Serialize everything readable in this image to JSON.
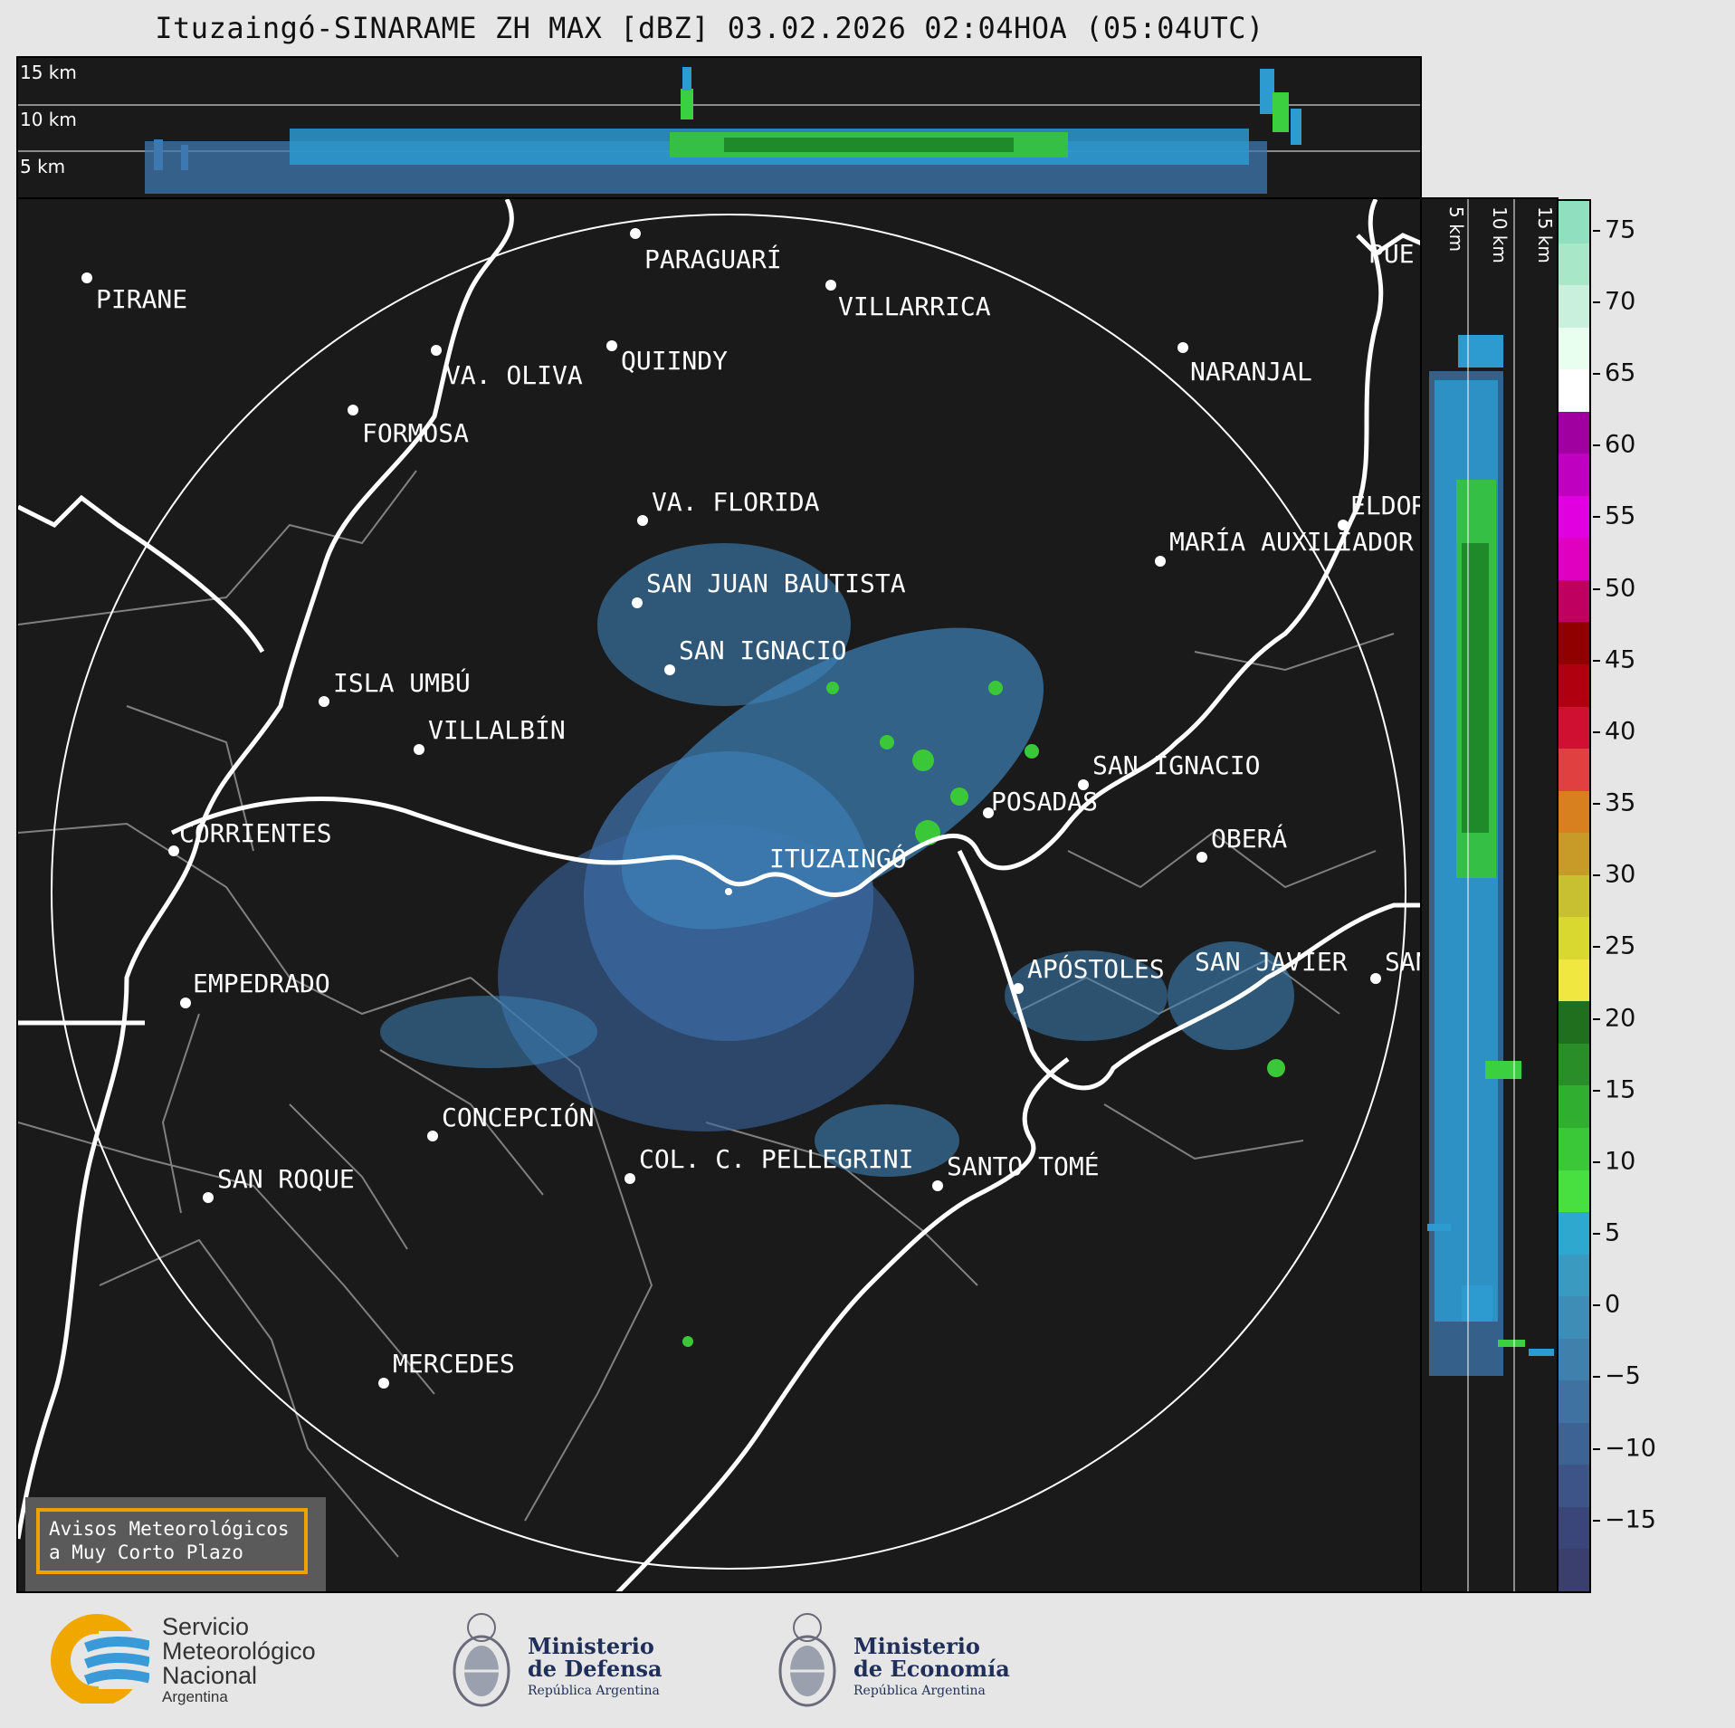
{
  "title": "Ituzaingó-SINARAME ZH MAX [dBZ] 03.02.2026 02:04HOA (05:04UTC)",
  "top_panel": {
    "height_labels": [
      "15 km",
      "10 km",
      "5 km"
    ]
  },
  "side_panel": {
    "height_labels": [
      "5 km",
      "10 km",
      "15 km"
    ]
  },
  "colorbar": {
    "ticks": [
      "75",
      "70",
      "65",
      "60",
      "55",
      "50",
      "45",
      "40",
      "35",
      "30",
      "25",
      "20",
      "15",
      "10",
      "5",
      "0",
      "−5",
      "−10",
      "−15"
    ],
    "min": -20,
    "max": 77,
    "colors": [
      "#3b3f6e",
      "#3a467a",
      "#3c5488",
      "#3d6395",
      "#3f72a1",
      "#3f80ac",
      "#3d8db7",
      "#3a9ac0",
      "#2fa8d0",
      "#48e040",
      "#3ac838",
      "#2fae30",
      "#2a8e28",
      "#1f6f1f",
      "#f0e840",
      "#d8d830",
      "#c8c030",
      "#c89a28",
      "#d88020",
      "#e04040",
      "#d01030",
      "#b00010",
      "#900000",
      "#c00060",
      "#e000c0",
      "#e000e0",
      "#c000c0",
      "#a000a0",
      "#ffffff",
      "#e8fff0",
      "#c8f0dc",
      "#a8e8c8",
      "#90e0c0"
    ]
  },
  "cities": [
    {
      "name": "PARAGUARÍ"
    },
    {
      "name": "VILLARRICA"
    },
    {
      "name": "PIRANE"
    },
    {
      "name": "VA. OLIVA"
    },
    {
      "name": "QUIINDY"
    },
    {
      "name": "NARANJAL"
    },
    {
      "name": "FORMOSA"
    },
    {
      "name": "ELDOR"
    },
    {
      "name": "VA. FLORIDA"
    },
    {
      "name": "MARÍA AUXILIADOR"
    },
    {
      "name": "SAN JUAN BAUTISTA"
    },
    {
      "name": "SAN IGNACIO"
    },
    {
      "name": "ISLA UMBÚ"
    },
    {
      "name": "VILLALBÍN"
    },
    {
      "name": "SAN IGNACIO"
    },
    {
      "name": "POSADAS"
    },
    {
      "name": "CORRIENTES"
    },
    {
      "name": "ITUZAINGÓ"
    },
    {
      "name": "OBERÁ"
    },
    {
      "name": "EMPEDRADO"
    },
    {
      "name": "APÓSTOLES"
    },
    {
      "name": "SAN JAVIER"
    },
    {
      "name": "SAN"
    },
    {
      "name": "CONCEPCIÓN"
    },
    {
      "name": "COL. C. PELLEGRINI"
    },
    {
      "name": "SANTO TOMÉ"
    },
    {
      "name": "SAN ROQUE"
    },
    {
      "name": "MERCEDES"
    },
    {
      "name": "PUE"
    }
  ],
  "warning_box": {
    "line1": "Avisos Meteorológicos",
    "line2": "a Muy Corto Plazo"
  },
  "logos": {
    "smn": {
      "line1": "Servicio",
      "line2": "Meteorológico",
      "line3": "Nacional",
      "line4": "Argentina"
    },
    "defensa": {
      "line1": "Ministerio",
      "line2": "de Defensa",
      "line3": "República Argentina"
    },
    "economia": {
      "line1": "Ministerio",
      "line2": "de Economía",
      "line3": "República Argentina"
    }
  }
}
